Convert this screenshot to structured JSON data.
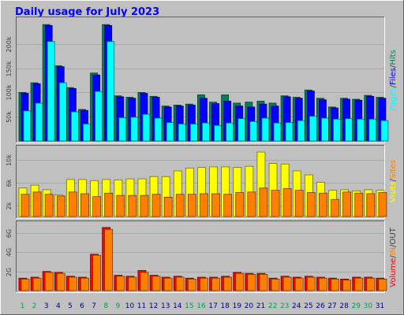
{
  "chart_data": {
    "type": "bar",
    "title": "Daily usage for July 2023",
    "days": [
      "1",
      "2",
      "3",
      "4",
      "5",
      "6",
      "7",
      "8",
      "9",
      "10",
      "11",
      "12",
      "13",
      "14",
      "15",
      "16",
      "17",
      "18",
      "19",
      "20",
      "21",
      "22",
      "23",
      "24",
      "25",
      "26",
      "27",
      "28",
      "29",
      "30",
      "31"
    ],
    "weekend_days": [
      "1",
      "2",
      "8",
      "9",
      "15",
      "16",
      "22",
      "23",
      "29",
      "30"
    ],
    "panels": [
      {
        "id": "pages-files-hits",
        "ylim": [
          0,
          250000
        ],
        "y_ticks": [
          {
            "v": 50000,
            "label": "50k"
          },
          {
            "v": 100000,
            "label": "100k"
          },
          {
            "v": 150000,
            "label": "150k"
          },
          {
            "v": 200000,
            "label": "200k"
          }
        ],
        "right_label": [
          "Pages",
          "/",
          "Files",
          "/",
          "Hits"
        ],
        "series": [
          {
            "name": "Hits",
            "color": "#00805a",
            "values": [
              100000,
              120000,
              240000,
              155000,
              110000,
              65000,
              140000,
              240000,
              93000,
              90000,
              100000,
              92000,
              72000,
              74000,
              76000,
              95000,
              80000,
              95000,
              78000,
              80000,
              82000,
              78000,
              93000,
              90000,
              105000,
              88000,
              70000,
              88000,
              86000,
              94000,
              90000
            ]
          },
          {
            "name": "Files",
            "color": "#0000ff",
            "values": [
              98000,
              118000,
              238000,
              153000,
              108000,
              63000,
              136000,
              238000,
              91000,
              88000,
              98000,
              90000,
              70000,
              72000,
              74000,
              88000,
              77000,
              82000,
              72000,
              70000,
              76000,
              72000,
              91000,
              88000,
              103000,
              85000,
              68000,
              86000,
              84000,
              92000,
              88000
            ]
          },
          {
            "name": "Pages",
            "color": "#00ffff",
            "values": [
              62000,
              78000,
              205000,
              120000,
              60000,
              35000,
              102000,
              205000,
              48000,
              49000,
              55000,
              47000,
              38000,
              35000,
              35000,
              37000,
              32000,
              37000,
              46000,
              40000,
              47000,
              37000,
              38000,
              42000,
              51000,
              47000,
              45000,
              46000,
              45000,
              45000,
              42000
            ]
          }
        ]
      },
      {
        "id": "visits-sites",
        "ylim": [
          0,
          12000
        ],
        "y_ticks": [
          {
            "v": 2000,
            "label": "2k"
          },
          {
            "v": 6000,
            "label": "6k"
          },
          {
            "v": 10000,
            "label": "10k"
          }
        ],
        "right_label": [
          "Visits",
          "/",
          "Sites"
        ],
        "series": [
          {
            "name": "Visits",
            "color": "#ffff00",
            "values": [
              5000,
              5500,
              4700,
              3800,
              6500,
              6500,
              6300,
              6500,
              6400,
              6600,
              6600,
              7000,
              7000,
              8000,
              8500,
              8600,
              8700,
              8700,
              8600,
              8800,
              11300,
              9300,
              9200,
              8000,
              7300,
              6000,
              4600,
              4700,
              4500,
              4700,
              4600
            ]
          },
          {
            "name": "Sites",
            "color": "#ff8000",
            "values": [
              3900,
              4300,
              3900,
              3600,
              4300,
              4000,
              3500,
              4100,
              3700,
              3700,
              3700,
              3900,
              3400,
              3900,
              3900,
              4000,
              4000,
              3900,
              4200,
              4300,
              5000,
              4600,
              4900,
              4600,
              4200,
              4100,
              3000,
              4300,
              4100,
              4000,
              4200
            ]
          }
        ]
      },
      {
        "id": "volume",
        "ylim": [
          0,
          7000000000
        ],
        "y_ticks": [
          {
            "v": 2000000000,
            "label": "2G"
          },
          {
            "v": 4000000000,
            "label": "4G"
          },
          {
            "v": 6000000000,
            "label": "6G"
          }
        ],
        "right_label": [
          "Volume",
          "/",
          "IN",
          "/",
          "OUT"
        ],
        "series": [
          {
            "name": "Volume",
            "color": "#ff0000",
            "values": [
              1300000000,
              1400000000,
              2000000000,
              1900000000,
              1500000000,
              1400000000,
              3800000000,
              6600000000,
              1600000000,
              1500000000,
              2100000000,
              1600000000,
              1400000000,
              1500000000,
              1300000000,
              1400000000,
              1400000000,
              1500000000,
              1900000000,
              1800000000,
              1800000000,
              1300000000,
              1500000000,
              1400000000,
              1500000000,
              1400000000,
              1300000000,
              1200000000,
              1400000000,
              1400000000,
              1300000000
            ]
          },
          {
            "name": "IN",
            "color": "#ff8000",
            "values": [
              1200000000,
              1300000000,
              1900000000,
              1800000000,
              1400000000,
              1300000000,
              3700000000,
              6400000000,
              1500000000,
              1400000000,
              1900000000,
              1500000000,
              1300000000,
              1400000000,
              1200000000,
              1300000000,
              1300000000,
              1400000000,
              1800000000,
              1700000000,
              1700000000,
              1200000000,
              1400000000,
              1300000000,
              1400000000,
              1300000000,
              1200000000,
              1100000000,
              1300000000,
              1300000000,
              1200000000
            ]
          }
        ]
      }
    ],
    "colors": {
      "frame_bg": "#c0c0c0",
      "title": "#0000ff",
      "weekday_label": "#008000",
      "weekend_label": "#00a050"
    }
  }
}
